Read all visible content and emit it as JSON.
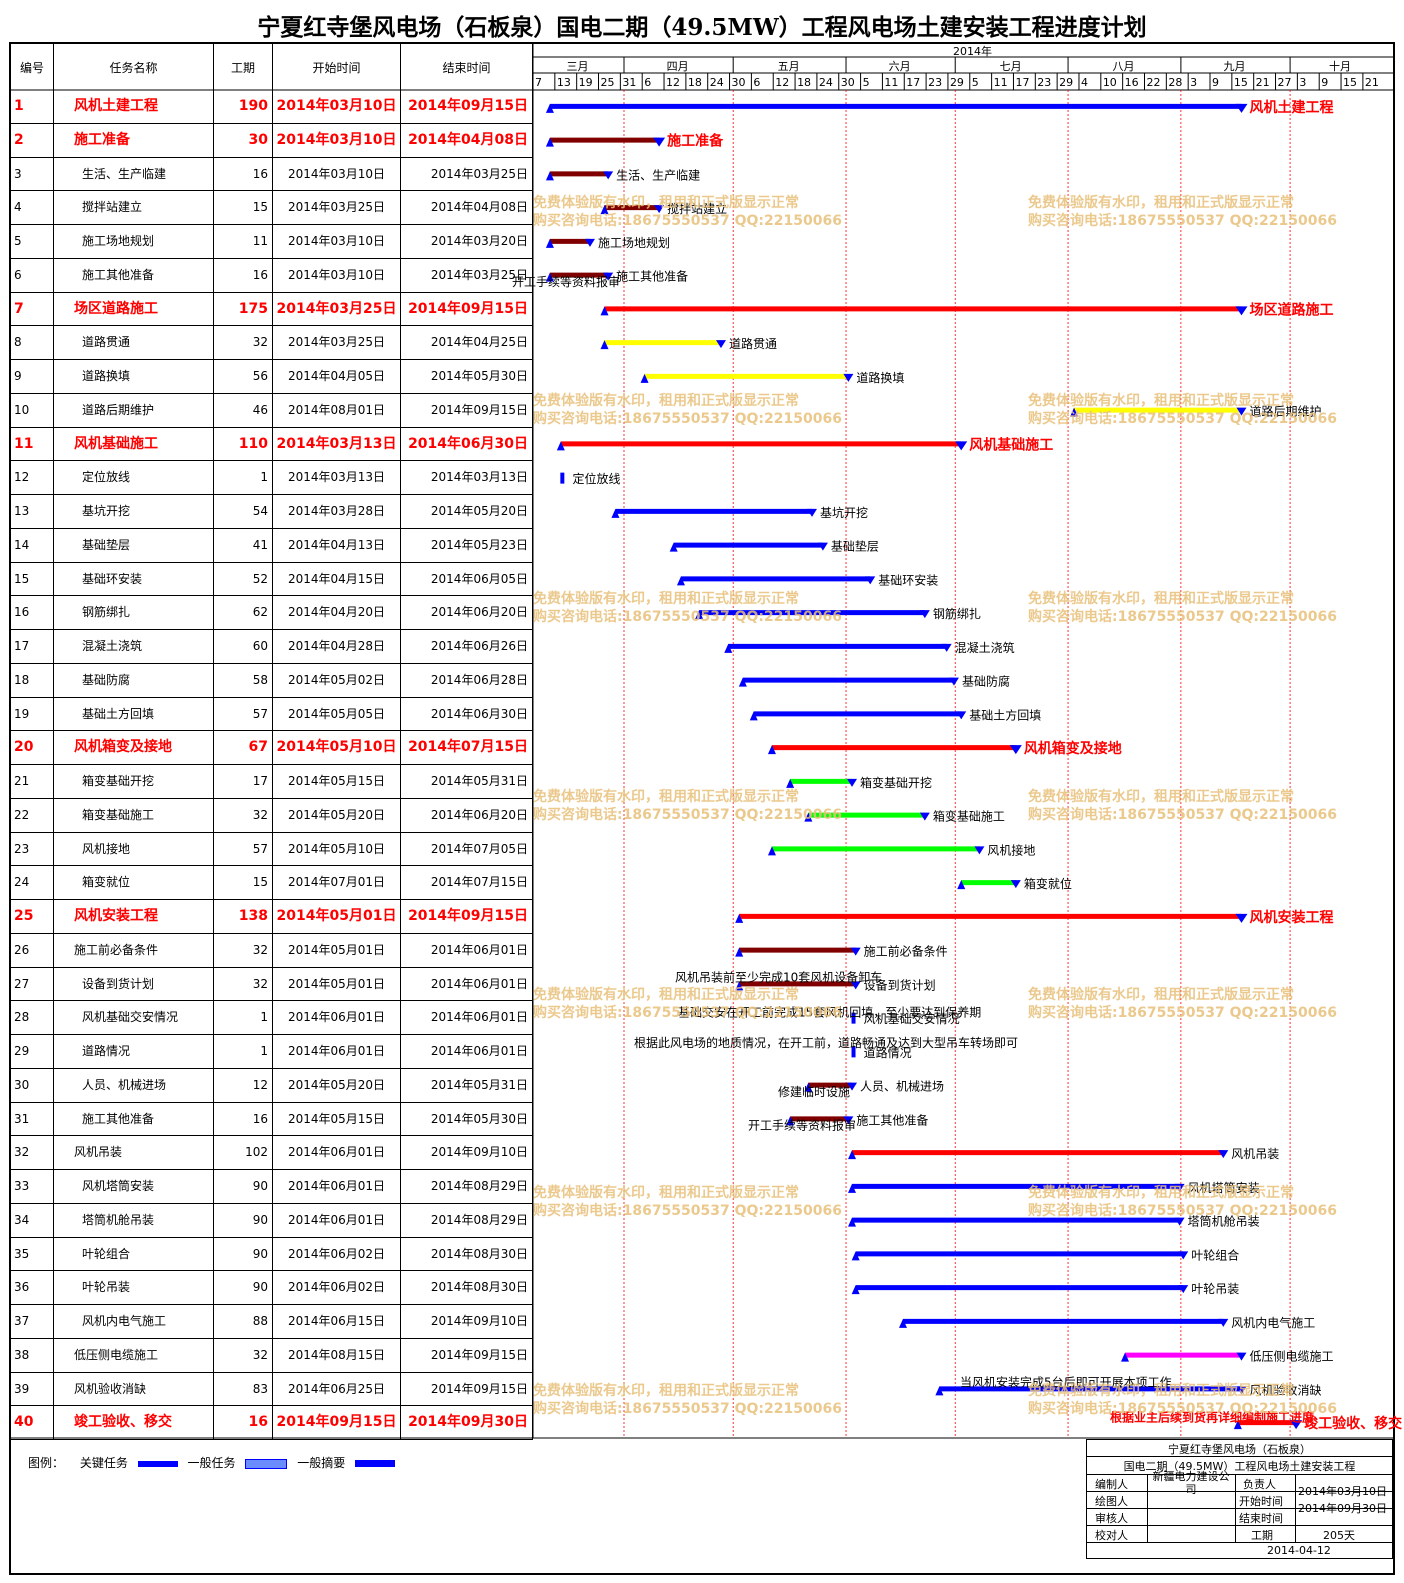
{
  "title": "宁夏红寺堡风电场（石板泉）国电二期（49.5MW）工程风电场土建安装工程进度计划",
  "headers": {
    "id": "编号",
    "name": "任务名称",
    "duration": "工期",
    "start": "开始时间",
    "end": "结束时间",
    "year": "2014年"
  },
  "months": [
    "三月",
    "四月",
    "五月",
    "六月",
    "七月",
    "八月",
    "九月",
    "十月"
  ],
  "day_ticks": [
    "7",
    "13",
    "19",
    "25",
    "31",
    "6",
    "12",
    "18",
    "24",
    "30",
    "6",
    "12",
    "18",
    "24",
    "30",
    "5",
    "11",
    "17",
    "23",
    "29",
    "5",
    "11",
    "17",
    "23",
    "29",
    "4",
    "10",
    "16",
    "22",
    "28",
    "3",
    "9",
    "15",
    "21",
    "27",
    "3",
    "9",
    "15",
    "21"
  ],
  "colors": {
    "summary": "#ff0000",
    "blue": "#0000ff",
    "darkred": "#800000",
    "yellow": "#ffff00",
    "green": "#00ff00",
    "magenta": "#ff00ff",
    "watermark": "#e8c07a"
  },
  "tasks": [
    {
      "id": "1",
      "name": "风机土建工程",
      "duration": "190",
      "start": "2014年03月10日",
      "end": "2014年09月15日",
      "summary": true,
      "color": "blue",
      "label": "风机土建工程"
    },
    {
      "id": "2",
      "name": "施工准备",
      "duration": "30",
      "start": "2014年03月10日",
      "end": "2014年04月08日",
      "summary": true,
      "color": "darkred",
      "label": "施工准备"
    },
    {
      "id": "3",
      "name": "生活、生产临建",
      "duration": "16",
      "start": "2014年03月10日",
      "end": "2014年03月25日",
      "color": "darkred",
      "label": "生活、生产临建"
    },
    {
      "id": "4",
      "name": "搅拌站建立",
      "duration": "15",
      "start": "2014年03月25日",
      "end": "2014年04月08日",
      "color": "darkred",
      "label": "搅拌站建立"
    },
    {
      "id": "5",
      "name": "施工场地规划",
      "duration": "11",
      "start": "2014年03月10日",
      "end": "2014年03月20日",
      "color": "darkred",
      "label": "施工场地规划"
    },
    {
      "id": "6",
      "name": "施工其他准备",
      "duration": "16",
      "start": "2014年03月10日",
      "end": "2014年03月25日",
      "color": "darkred",
      "label": "施工其他准备"
    },
    {
      "id": "7",
      "name": "场区道路施工",
      "duration": "175",
      "start": "2014年03月25日",
      "end": "2014年09月15日",
      "summary": true,
      "color": "summary",
      "label": "场区道路施工"
    },
    {
      "id": "8",
      "name": "道路贯通",
      "duration": "32",
      "start": "2014年03月25日",
      "end": "2014年04月25日",
      "color": "yellow",
      "label": "道路贯通"
    },
    {
      "id": "9",
      "name": "道路换填",
      "duration": "56",
      "start": "2014年04月05日",
      "end": "2014年05月30日",
      "color": "yellow",
      "label": "道路换填"
    },
    {
      "id": "10",
      "name": "道路后期维护",
      "duration": "46",
      "start": "2014年08月01日",
      "end": "2014年09月15日",
      "color": "yellow",
      "label": "道路后期维护"
    },
    {
      "id": "11",
      "name": "风机基础施工",
      "duration": "110",
      "start": "2014年03月13日",
      "end": "2014年06月30日",
      "summary": true,
      "color": "summary",
      "label": "风机基础施工"
    },
    {
      "id": "12",
      "name": "定位放线",
      "duration": "1",
      "start": "2014年03月13日",
      "end": "2014年03月13日",
      "color": "blue",
      "label": "定位放线"
    },
    {
      "id": "13",
      "name": "基坑开挖",
      "duration": "54",
      "start": "2014年03月28日",
      "end": "2014年05月20日",
      "color": "blue",
      "label": "基坑开挖"
    },
    {
      "id": "14",
      "name": "基础垫层",
      "duration": "41",
      "start": "2014年04月13日",
      "end": "2014年05月23日",
      "color": "blue",
      "label": "基础垫层"
    },
    {
      "id": "15",
      "name": "基础环安装",
      "duration": "52",
      "start": "2014年04月15日",
      "end": "2014年06月05日",
      "color": "blue",
      "label": "基础环安装"
    },
    {
      "id": "16",
      "name": "钢筋绑扎",
      "duration": "62",
      "start": "2014年04月20日",
      "end": "2014年06月20日",
      "color": "blue",
      "label": "钢筋绑扎"
    },
    {
      "id": "17",
      "name": "混凝土浇筑",
      "duration": "60",
      "start": "2014年04月28日",
      "end": "2014年06月26日",
      "color": "blue",
      "label": "混凝土浇筑"
    },
    {
      "id": "18",
      "name": "基础防腐",
      "duration": "58",
      "start": "2014年05月02日",
      "end": "2014年06月28日",
      "color": "blue",
      "label": "基础防腐"
    },
    {
      "id": "19",
      "name": "基础土方回填",
      "duration": "57",
      "start": "2014年05月05日",
      "end": "2014年06月30日",
      "color": "blue",
      "label": "基础土方回填"
    },
    {
      "id": "20",
      "name": "风机箱变及接地",
      "duration": "67",
      "start": "2014年05月10日",
      "end": "2014年07月15日",
      "summary": true,
      "color": "summary",
      "label": "风机箱变及接地"
    },
    {
      "id": "21",
      "name": "箱变基础开挖",
      "duration": "17",
      "start": "2014年05月15日",
      "end": "2014年05月31日",
      "color": "green",
      "label": "箱变基础开挖"
    },
    {
      "id": "22",
      "name": "箱变基础施工",
      "duration": "32",
      "start": "2014年05月20日",
      "end": "2014年06月20日",
      "color": "green",
      "label": "箱变基础施工"
    },
    {
      "id": "23",
      "name": "风机接地",
      "duration": "57",
      "start": "2014年05月10日",
      "end": "2014年07月05日",
      "color": "green",
      "label": "风机接地"
    },
    {
      "id": "24",
      "name": "箱变就位",
      "duration": "15",
      "start": "2014年07月01日",
      "end": "2014年07月15日",
      "color": "green",
      "label": "箱变就位"
    },
    {
      "id": "25",
      "name": "风机安装工程",
      "duration": "138",
      "start": "2014年05月01日",
      "end": "2014年09月15日",
      "summary": true,
      "color": "summary",
      "label": "风机安装工程"
    },
    {
      "id": "26",
      "name": "施工前必备条件",
      "duration": "32",
      "start": "2014年05月01日",
      "end": "2014年06月01日",
      "color": "darkred",
      "label": "施工前必备条件"
    },
    {
      "id": "27",
      "name": "设备到货计划",
      "duration": "32",
      "start": "2014年05月01日",
      "end": "2014年06月01日",
      "color": "darkred",
      "label": "设备到货计划"
    },
    {
      "id": "28",
      "name": "风机基础交安情况",
      "duration": "1",
      "start": "2014年06月01日",
      "end": "2014年06月01日",
      "color": "blue",
      "label": "风机基础交安情况"
    },
    {
      "id": "29",
      "name": "道路情况",
      "duration": "1",
      "start": "2014年06月01日",
      "end": "2014年06月01日",
      "color": "blue",
      "label": "道路情况"
    },
    {
      "id": "30",
      "name": "人员、机械进场",
      "duration": "12",
      "start": "2014年05月20日",
      "end": "2014年05月31日",
      "color": "darkred",
      "label": "人员、机械进场"
    },
    {
      "id": "31",
      "name": "施工其他准备",
      "duration": "16",
      "start": "2014年05月15日",
      "end": "2014年05月30日",
      "color": "darkred",
      "label": "施工其他准备"
    },
    {
      "id": "32",
      "name": "风机吊装",
      "duration": "102",
      "start": "2014年06月01日",
      "end": "2014年09月10日",
      "color": "summary",
      "label": "风机吊装"
    },
    {
      "id": "33",
      "name": "风机塔筒安装",
      "duration": "90",
      "start": "2014年06月01日",
      "end": "2014年08月29日",
      "color": "blue",
      "label": "风机塔筒安装"
    },
    {
      "id": "34",
      "name": "塔筒机舱吊装",
      "duration": "90",
      "start": "2014年06月01日",
      "end": "2014年08月29日",
      "color": "blue",
      "label": "塔筒机舱吊装"
    },
    {
      "id": "35",
      "name": "叶轮组合",
      "duration": "90",
      "start": "2014年06月02日",
      "end": "2014年08月30日",
      "color": "blue",
      "label": "叶轮组合"
    },
    {
      "id": "36",
      "name": "叶轮吊装",
      "duration": "90",
      "start": "2014年06月02日",
      "end": "2014年08月30日",
      "color": "blue",
      "label": "叶轮吊装"
    },
    {
      "id": "37",
      "name": "风机内电气施工",
      "duration": "88",
      "start": "2014年06月15日",
      "end": "2014年09月10日",
      "color": "blue",
      "label": "风机内电气施工"
    },
    {
      "id": "38",
      "name": "低压侧电缆施工",
      "duration": "32",
      "start": "2014年08月15日",
      "end": "2014年09月15日",
      "color": "magenta",
      "label": "低压侧电缆施工"
    },
    {
      "id": "39",
      "name": "风机验收消缺",
      "duration": "83",
      "start": "2014年06月25日",
      "end": "2014年09月15日",
      "color": "blue",
      "label": "风机验收消缺"
    },
    {
      "id": "40",
      "name": "竣工验收、移交",
      "duration": "16",
      "start": "2014年09月15日",
      "end": "2014年09月30日",
      "summary": true,
      "color": "summary",
      "label": "竣工验收、移交"
    }
  ],
  "notes": [
    {
      "text": "开工手续等资料报审",
      "row": 6
    },
    {
      "text": "风机吊装前至少完成10套风机设备卸车",
      "row": 27
    },
    {
      "text": "基础交安在开工前完成15套风机回填，至少要达到保养期",
      "row": 28
    },
    {
      "text": "根据此风电场的地质情况，在开工前，道路畅通及达到大型吊车转场即可",
      "row": 29
    },
    {
      "text": "修建临时设施",
      "row": 30
    },
    {
      "text": "开工手续等资料报审",
      "row": 31
    },
    {
      "text": "当风机安装完成5台后即可开展本项工作",
      "row": 39
    },
    {
      "text": "根据业主后续到货再详细编制施工进度",
      "row": 40
    }
  ],
  "watermark": {
    "line1": "免费体验版有水印，租用和正式版显示正常",
    "line2": "购买咨询电话:18675550537 QQ:22150066"
  },
  "legend": {
    "label": "图例：",
    "critical": "关键任务",
    "normal": "一般任务",
    "summary": "一般摘要"
  },
  "info": {
    "project_name": "宁夏红寺堡风电场（石板泉）",
    "project_sub": "国电二期（49.5MW）工程风电场土建安装工程",
    "editor_label": "编制人",
    "editor": "新疆电力建设公司",
    "owner_label": "负责人",
    "drawer_label": "绘图人",
    "reviewer_label": "审核人",
    "checker_label": "校对人",
    "start_label": "开始时间",
    "start": "2014年03月10日",
    "end_label": "结束时间",
    "end": "2014年09月30日",
    "duration_label": "工期",
    "duration": "205天",
    "date": "2014-04-12"
  }
}
